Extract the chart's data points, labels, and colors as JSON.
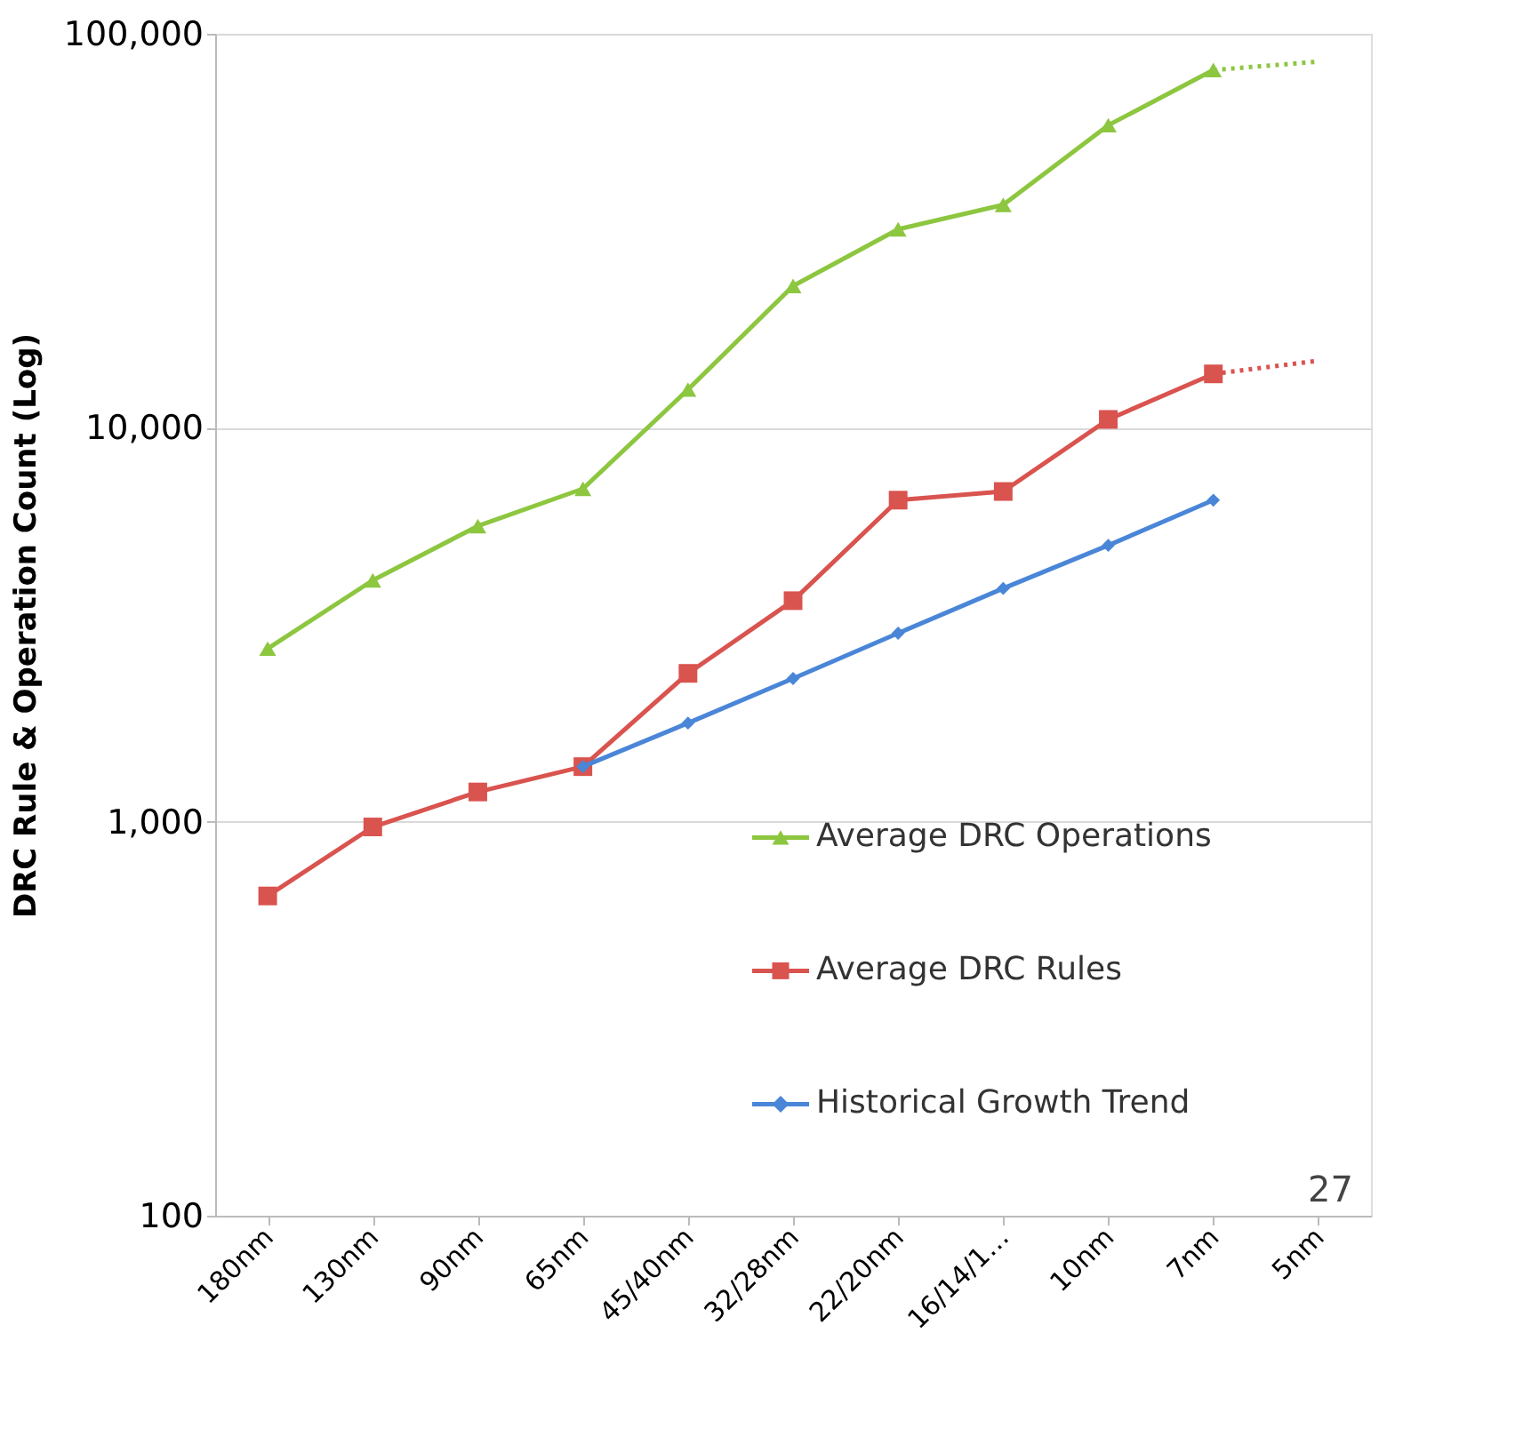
{
  "chart_data": {
    "type": "line",
    "ylabel": "DRC Rule  & Operation Count (Log)",
    "categories": [
      "180nm",
      "130nm",
      "90nm",
      "65nm",
      "45/40nm",
      "32/28nm",
      "22/20nm",
      "16/14/1…",
      "10nm",
      "7nm",
      "5nm"
    ],
    "series": [
      {
        "name": "Average DRC Operations",
        "color": "#8dc63f",
        "marker": "triangle",
        "values": [
          2750,
          4100,
          5630,
          7000,
          12500,
          22900,
          31900,
          36800,
          58600,
          80900,
          null
        ]
      },
      {
        "name": "Average DRC Rules",
        "color": "#d9534f",
        "marker": "square",
        "values": [
          648,
          970,
          1190,
          1380,
          2380,
          3640,
          6550,
          6890,
          10500,
          13700,
          null
        ]
      },
      {
        "name": "Historical Growth Trend",
        "color": "#4a86d8",
        "marker": "diamond",
        "values": [
          null,
          null,
          null,
          1380,
          1780,
          2310,
          3010,
          3910,
          5030,
          6550,
          null
        ]
      },
      {
        "color": "#8dc63f",
        "line_style": "dotted",
        "values": [
          null,
          null,
          null,
          null,
          null,
          null,
          null,
          null,
          null,
          80900,
          85000
        ]
      },
      {
        "color": "#d9534f",
        "line_style": "dotted",
        "values": [
          null,
          null,
          null,
          null,
          null,
          null,
          null,
          null,
          null,
          13700,
          14800
        ]
      }
    ],
    "log": true,
    "ylim": [
      100,
      100000
    ],
    "yticks": [
      100,
      {
        "value": 1000,
        "label": "1,000"
      },
      {
        "value": 10000,
        "label": "10,000"
      },
      {
        "value": 100000,
        "label": "100,000"
      }
    ],
    "grid": "y",
    "legend": "right",
    "annotations": [
      "27"
    ]
  }
}
